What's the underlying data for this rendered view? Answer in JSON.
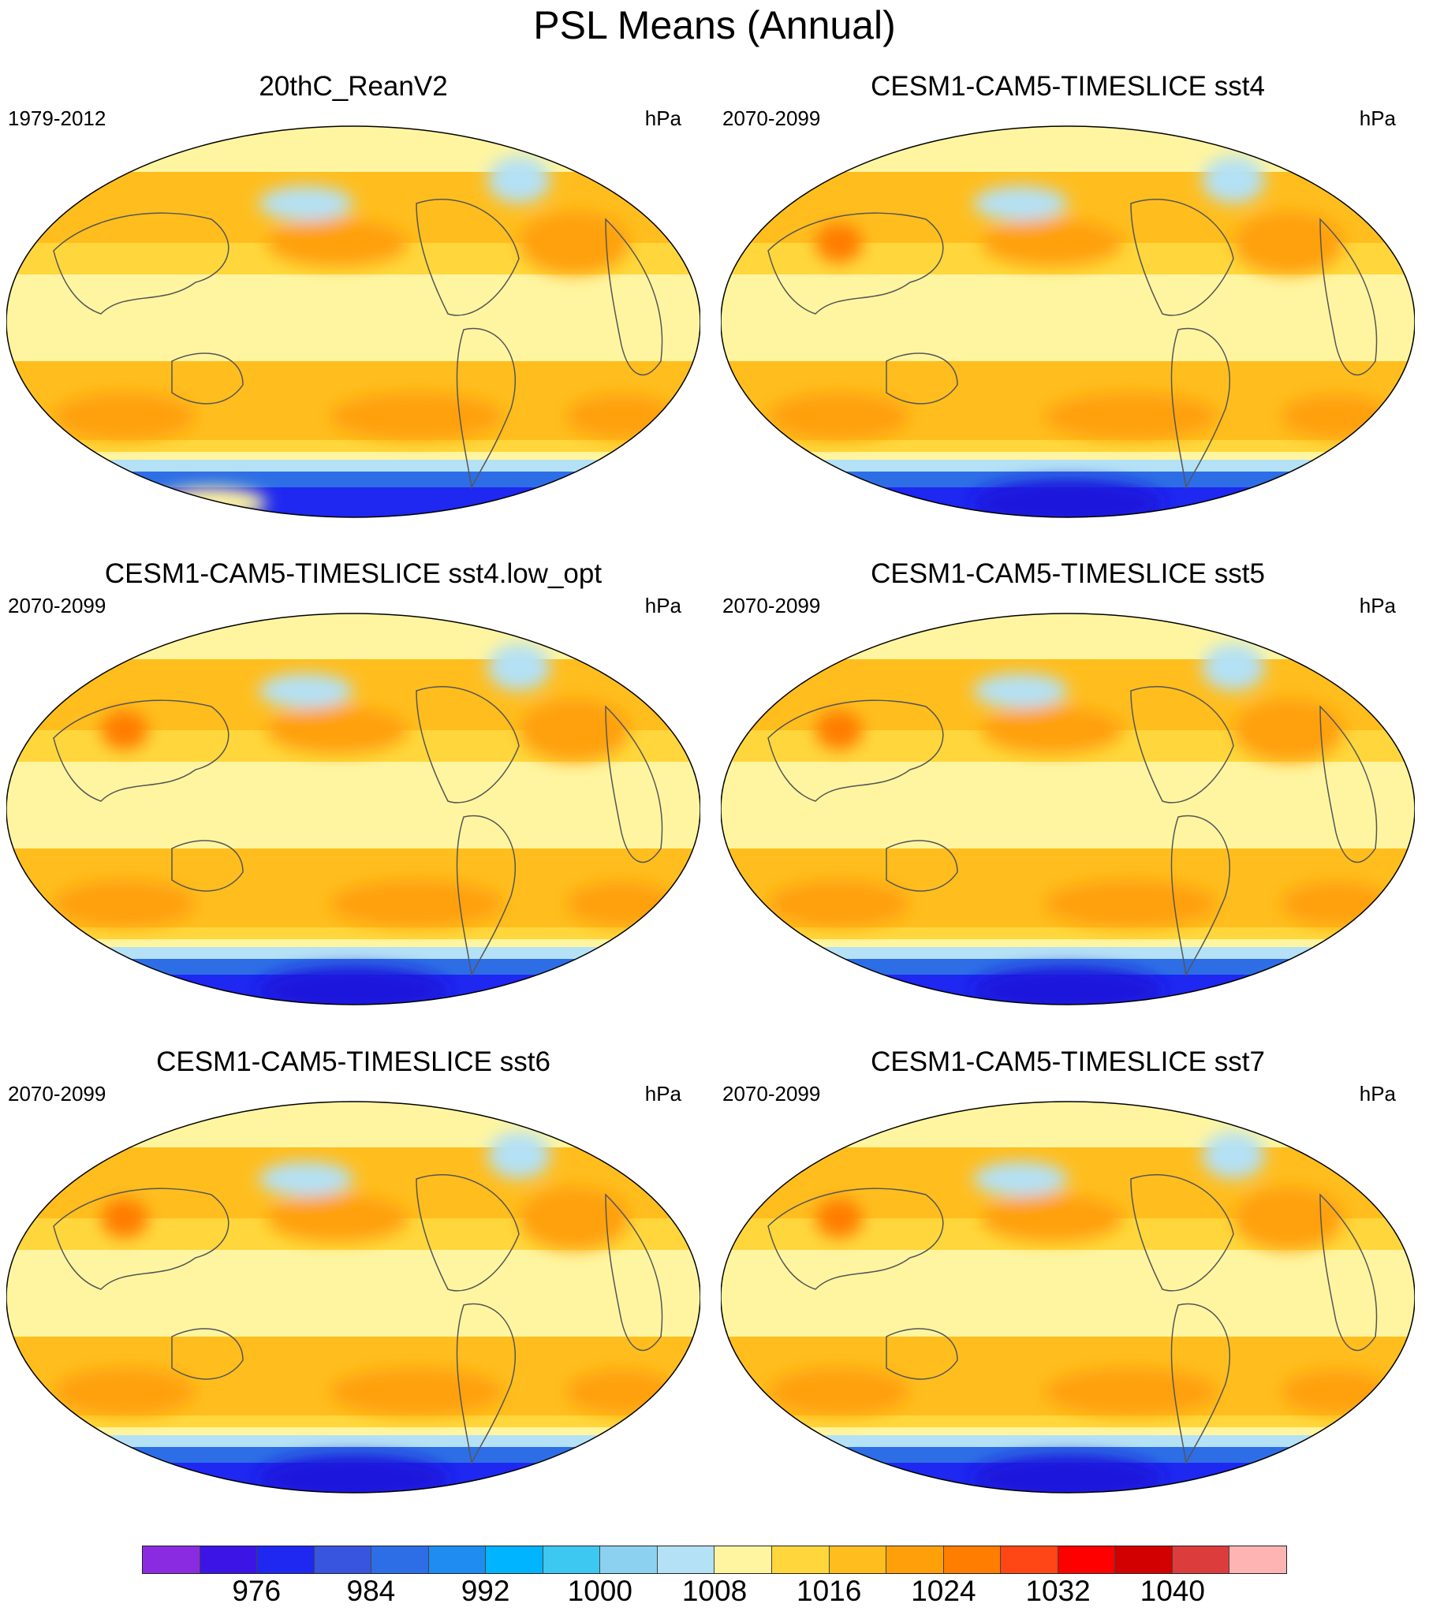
{
  "title": "PSL Means (Annual)",
  "panels": [
    {
      "title": "20thC_ReanV2",
      "period": "1979-2012",
      "units": "hPa",
      "variant": "obs"
    },
    {
      "title": "CESM1-CAM5-TIMESLICE sst4",
      "period": "2070-2099",
      "units": "hPa",
      "variant": "model"
    },
    {
      "title": "CESM1-CAM5-TIMESLICE sst4.low_opt",
      "period": "2070-2099",
      "units": "hPa",
      "variant": "model"
    },
    {
      "title": "CESM1-CAM5-TIMESLICE sst5",
      "period": "2070-2099",
      "units": "hPa",
      "variant": "model"
    },
    {
      "title": "CESM1-CAM5-TIMESLICE sst6",
      "period": "2070-2099",
      "units": "hPa",
      "variant": "model"
    },
    {
      "title": "CESM1-CAM5-TIMESLICE sst7",
      "period": "2070-2099",
      "units": "hPa",
      "variant": "model"
    }
  ],
  "colorbar": {
    "colors": [
      "#8a2be2",
      "#3c14e6",
      "#1e28f0",
      "#3755de",
      "#2d6ee6",
      "#1e8cf0",
      "#00b4ff",
      "#3cc8f0",
      "#8cd2f0",
      "#b4e1f5",
      "#fff5a0",
      "#ffd73c",
      "#ffbe1e",
      "#ffa00a",
      "#ff7d00",
      "#ff4614",
      "#ff0000",
      "#d20000",
      "#dc3c3c",
      "#ffb4b4"
    ],
    "tick_labels": [
      "976",
      "984",
      "992",
      "1000",
      "1008",
      "1016",
      "1024",
      "1032",
      "1040"
    ]
  },
  "colors": {
    "land_outline": "#555555",
    "antarctic_blue": "#2d6ee6",
    "deep_blue": "#1e28f0",
    "light_blue": "#b4e1f5",
    "pale_yellow": "#fff5a0",
    "yellow": "#ffd73c",
    "orange": "#ffbe1e",
    "dark_orange": "#ffa00a",
    "red_orange": "#ff7d00"
  }
}
